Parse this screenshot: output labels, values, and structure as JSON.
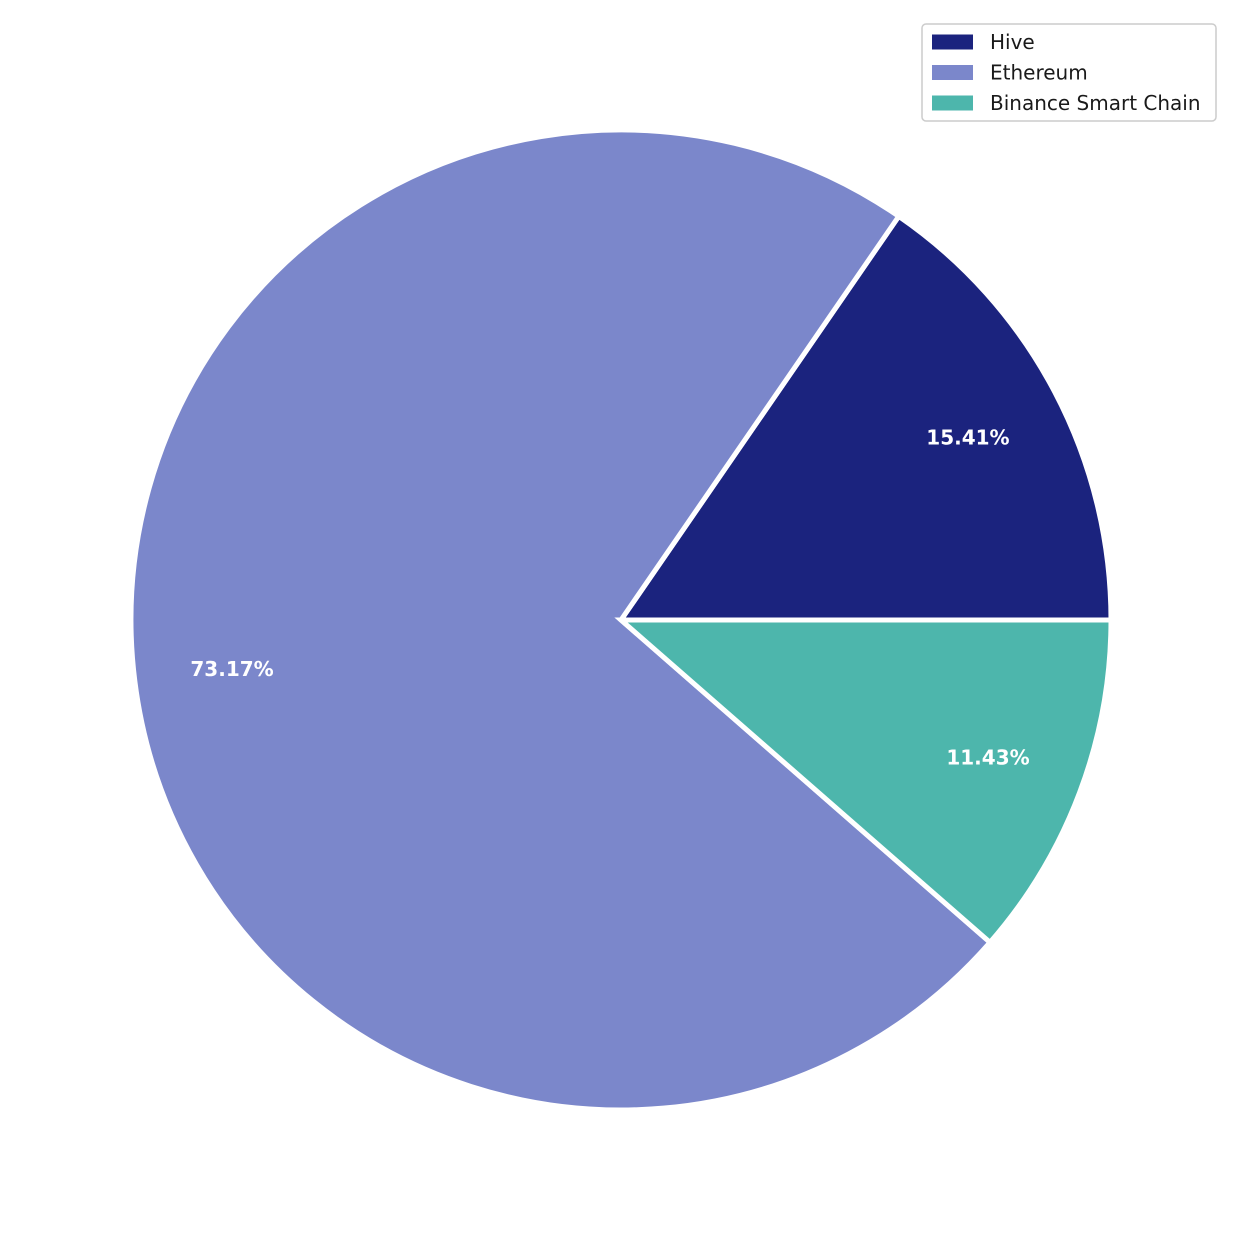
{
  "chart_data": {
    "type": "pie",
    "title": "",
    "start_angle_deg": 0,
    "direction": "counterclockwise",
    "legend_position": "top-right",
    "slices": [
      {
        "name": "Hive",
        "value": 15.41,
        "label": "15.41%",
        "color": "#1b237e"
      },
      {
        "name": "Ethereum",
        "value": 73.17,
        "label": "73.17%",
        "color": "#7b87cb"
      },
      {
        "name": "Binance Smart Chain",
        "value": 11.43,
        "label": "11.43%",
        "color": "#4db6ac"
      }
    ]
  }
}
